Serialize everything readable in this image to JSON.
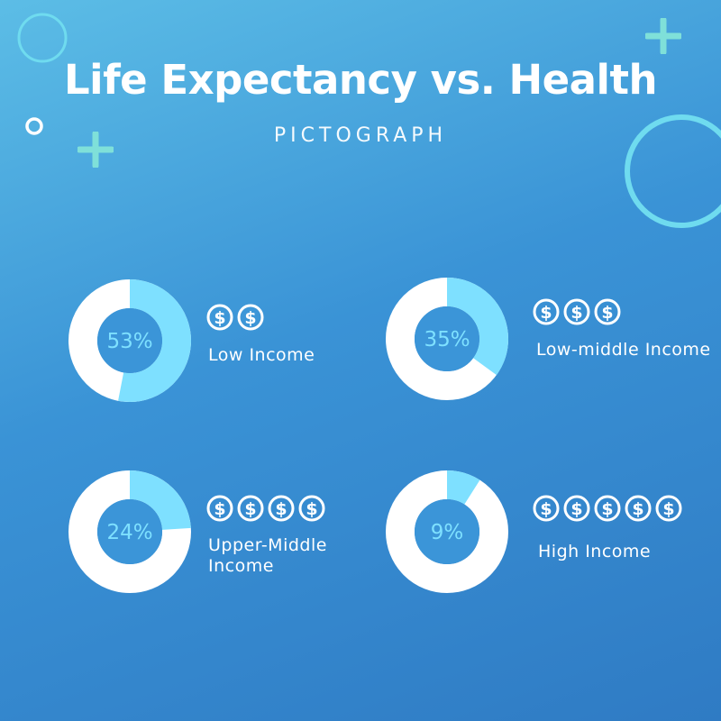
{
  "title": "Life Expectancy vs. Health",
  "subtitle": "PICTOGRAPH",
  "colors": {
    "accent": "#7ee0ff",
    "ring": "#ffffff",
    "center": "#3b95d8",
    "deco_cyan": "#6fdbef"
  },
  "icons": [
    "dollar-coin-icon",
    "plus-icon",
    "ring-icon"
  ],
  "chart_data": {
    "type": "pie",
    "variant": "donut",
    "title": "Life Expectancy vs. Health",
    "subtitle": "PICTOGRAPH",
    "unit": "%",
    "items": [
      {
        "category": "Low Income",
        "value": 53,
        "value_label": "53%",
        "dollar_count": 2
      },
      {
        "category": "Low-middle Income",
        "value": 35,
        "value_label": "35%",
        "dollar_count": 3
      },
      {
        "category": "Upper-Middle Income",
        "value": 24,
        "value_label": "24%",
        "dollar_count": 4
      },
      {
        "category": "High Income",
        "value": 9,
        "value_label": "9%",
        "dollar_count": 5
      }
    ]
  }
}
